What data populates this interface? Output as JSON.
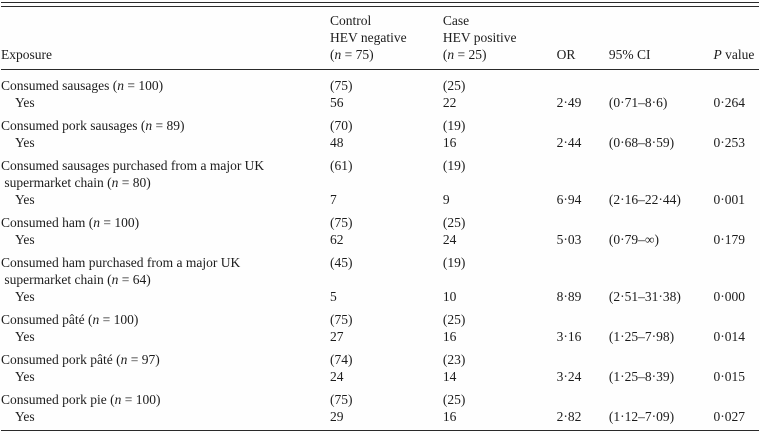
{
  "header": {
    "exposure": "Exposure",
    "control": "Control\nHEV negative\n(*n* = 75)",
    "case": "Case\nHEV positive\n(*n* = 25)",
    "or": "OR",
    "ci": "95% CI",
    "p": "*P* value"
  },
  "rows": [
    {
      "exposure": "Consumed sausages (*n* = 100)",
      "control_count": "(75)",
      "case_count": "(25)",
      "yes_label": "Yes",
      "control_yes": "56",
      "case_yes": "22",
      "or": "2·49",
      "ci": "(0·71–8·6)",
      "p": "0·264"
    },
    {
      "exposure": "Consumed pork sausages (*n* = 89)",
      "control_count": "(70)",
      "case_count": "(19)",
      "yes_label": "Yes",
      "control_yes": "48",
      "case_yes": "16",
      "or": "2·44",
      "ci": "(0·68–8·59)",
      "p": "0·253"
    },
    {
      "exposure": "Consumed sausages purchased from a major UK\n supermarket chain (*n* = 80)",
      "control_count": "(61)",
      "case_count": "(19)",
      "yes_label": "Yes",
      "control_yes": "7",
      "case_yes": "9",
      "or": "6·94",
      "ci": "(2·16–22·44)",
      "p": "0·001"
    },
    {
      "exposure": "Consumed ham (*n* = 100)",
      "control_count": "(75)",
      "case_count": "(25)",
      "yes_label": "Yes",
      "control_yes": "62",
      "case_yes": "24",
      "or": "5·03",
      "ci": "(0·79–∞)",
      "p": "0·179"
    },
    {
      "exposure": "Consumed ham purchased from a major UK\n supermarket chain (*n* = 64)",
      "control_count": "(45)",
      "case_count": "(19)",
      "yes_label": "Yes",
      "control_yes": "5",
      "case_yes": "10",
      "or": "8·89",
      "ci": "(2·51–31·38)",
      "p": "0·000"
    },
    {
      "exposure": "Consumed pâté (*n* = 100)",
      "control_count": "(75)",
      "case_count": "(25)",
      "yes_label": "Yes",
      "control_yes": "27",
      "case_yes": "16",
      "or": "3·16",
      "ci": "(1·25–7·98)",
      "p": "0·014"
    },
    {
      "exposure": "Consumed pork pâté (*n* = 97)",
      "control_count": "(74)",
      "case_count": "(23)",
      "yes_label": "Yes",
      "control_yes": "24",
      "case_yes": "14",
      "or": "3·24",
      "ci": "(1·25–8·39)",
      "p": "0·015"
    },
    {
      "exposure": "Consumed pork pie (*n* = 100)",
      "control_count": "(75)",
      "case_count": "(25)",
      "yes_label": "Yes",
      "control_yes": "29",
      "case_yes": "16",
      "or": "2·82",
      "ci": "(1·12–7·09)",
      "p": "0·027"
    }
  ]
}
